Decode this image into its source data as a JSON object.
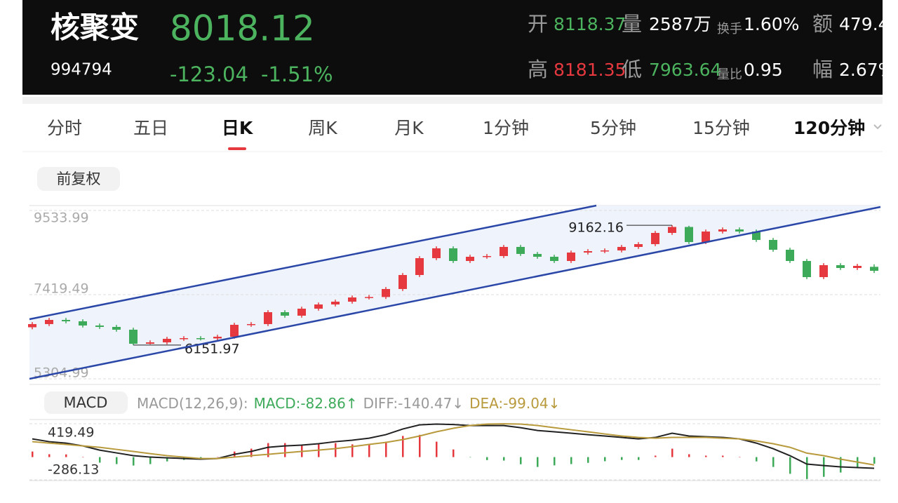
{
  "header": {
    "name": "核聚变",
    "code": "994794",
    "price": "8018.12",
    "change": "-123.04",
    "change_pct": "-1.51%",
    "stats": [
      [
        {
          "label": "开",
          "value": "8118.37"
        },
        {
          "label": "量",
          "value": "2587万"
        },
        {
          "label": "换手",
          "value": "1.60%"
        },
        {
          "label": "额",
          "value": "479.4"
        }
      ],
      [
        {
          "label": "高",
          "value": "8181.35"
        },
        {
          "label": "低",
          "value": "7963.64"
        },
        {
          "label": "量比",
          "value": "0.95"
        },
        {
          "label": "幅",
          "value": "2.67%"
        }
      ]
    ]
  },
  "tabs": [
    "分时",
    "五日",
    "日K",
    "周K",
    "月K",
    "1分钟",
    "5分钟",
    "15分钟",
    "120分钟"
  ],
  "adjust": "前复权",
  "chart_data": [
    {
      "type": "candlestick",
      "ylim": [
        5304.99,
        9533.99
      ],
      "yticks": [
        9533.99,
        7419.49,
        5304.99
      ],
      "up_color": "#e5393f",
      "down_color": "#3daa5a",
      "max_index": 38,
      "min_index": 6,
      "open": [
        6600,
        6680,
        6785,
        6750,
        6644,
        6609,
        6539,
        6186,
        6221,
        6310,
        6327,
        6320,
        6362,
        6662,
        6680,
        6979,
        6891,
        7067,
        7173,
        7243,
        7349,
        7360,
        7561,
        7913,
        8336,
        8583,
        8265,
        8371,
        8389,
        8618,
        8442,
        8371,
        8265,
        8477,
        8512,
        8530,
        8618,
        8688,
        8970,
        9120,
        8741,
        9005,
        9058,
        9005,
        8794,
        8547,
        8265,
        7860,
        8160,
        8089,
        8118.37
      ],
      "high": [
        6730,
        6835,
        6835,
        6800,
        6694,
        6659,
        6589,
        6271,
        6360,
        6377,
        6377,
        6412,
        6712,
        6730,
        7029,
        7029,
        7117,
        7223,
        7293,
        7399,
        7410,
        7611,
        7963,
        8386,
        8633,
        8633,
        8421,
        8439,
        8668,
        8668,
        8492,
        8421,
        8527,
        8562,
        8580,
        8668,
        8738,
        9020,
        9162.16,
        9150,
        9055,
        9108,
        9108,
        9055,
        8844,
        8597,
        8315,
        8210,
        8210,
        8192,
        8181.35
      ],
      "low": [
        6550,
        6630,
        6700,
        6594,
        6559,
        6489,
        6151.97,
        6170,
        6171,
        6260,
        6270,
        6270,
        6312,
        6612,
        6630,
        6841,
        6841,
        7017,
        7123,
        7193,
        7299,
        7310,
        7511,
        7863,
        8286,
        8215,
        8215,
        8321,
        8339,
        8392,
        8321,
        8215,
        8215,
        8427,
        8462,
        8480,
        8568,
        8638,
        8920,
        8691,
        8691,
        8955,
        8955,
        8744,
        8497,
        8215,
        7810,
        7810,
        8039,
        8039,
        7963.64
      ],
      "close": [
        6680,
        6785,
        6750,
        6644,
        6609,
        6539,
        6186,
        6221,
        6310,
        6327,
        6320,
        6362,
        6662,
        6680,
        6979,
        6891,
        7067,
        7173,
        7243,
        7349,
        7360,
        7561,
        7913,
        8336,
        8583,
        8265,
        8371,
        8389,
        8618,
        8442,
        8371,
        8265,
        8477,
        8512,
        8530,
        8618,
        8688,
        8970,
        9120,
        8741,
        9005,
        9058,
        9005,
        8794,
        8547,
        8265,
        7860,
        8160,
        8089,
        8142,
        8018.12
      ]
    },
    {
      "type": "macd",
      "title": "MACD",
      "params": "MACD(12,26,9):",
      "ylim": [
        -286.13,
        419.49
      ],
      "yticks": [
        419.49,
        -286.13
      ],
      "series": [
        {
          "name": "MACD:",
          "arrow": "↑",
          "color": "#3daa5a",
          "up_color": "#e5393f",
          "style": "bars",
          "values": [
            70,
            36,
            34,
            0,
            -70,
            -88,
            -106,
            -88,
            -54,
            -36,
            -16,
            0,
            70,
            106,
            176,
            176,
            158,
            160,
            176,
            160,
            158,
            194,
            266,
            280,
            194,
            96,
            -2,
            -38,
            -44,
            -90,
            -124,
            -104,
            -88,
            -72,
            -52,
            -36,
            -36,
            18,
            106,
            36,
            18,
            18,
            0,
            -54,
            -124,
            -210,
            -276,
            -248,
            -194,
            -140,
            -82.86
          ]
        },
        {
          "name": "DIFF:",
          "arrow": "↓",
          "color": "#222222",
          "legend_color": "#999999",
          "style": "line",
          "values": [
            229,
            194,
            176,
            141,
            88,
            53,
            18,
            0,
            -9,
            -18,
            -26,
            -18,
            35,
            71,
            123,
            141,
            150,
            168,
            194,
            212,
            238,
            282,
            353,
            405,
            415,
            410,
            396,
            396,
            396,
            370,
            335,
            318,
            300,
            282,
            265,
            247,
            229,
            247,
            300,
            265,
            256,
            247,
            229,
            176,
            106,
            18,
            -88,
            -106,
            -123,
            -132,
            -140.47
          ]
        },
        {
          "name": "DEA:",
          "arrow": "↓",
          "color": "#b89a3c",
          "style": "line",
          "values": [
            194,
            176,
            159,
            141,
            123,
            97,
            71,
            44,
            18,
            0,
            -18,
            -18,
            0,
            18,
            35,
            53,
            71,
            88,
            106,
            132,
            159,
            185,
            220,
            265,
            318,
            362,
            397,
            415,
            418,
            415,
            397,
            370,
            344,
            318,
            291,
            265,
            247,
            238,
            247,
            247,
            247,
            238,
            229,
            203,
            168,
            123,
            50,
            18,
            -26,
            -62,
            -99.04
          ]
        }
      ]
    }
  ]
}
